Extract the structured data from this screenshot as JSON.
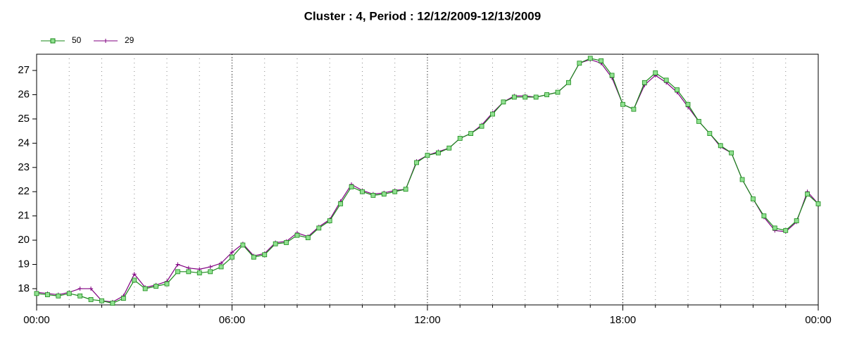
{
  "chart_data": {
    "type": "line",
    "title": "Cluster : 4, Period : 12/12/2009-12/13/2009",
    "x": [
      0,
      20,
      40,
      60,
      80,
      100,
      120,
      140,
      160,
      180,
      200,
      220,
      240,
      260,
      280,
      300,
      320,
      340,
      360,
      380,
      400,
      420,
      440,
      460,
      480,
      500,
      520,
      540,
      560,
      580,
      600,
      620,
      640,
      660,
      680,
      700,
      720,
      740,
      760,
      780,
      800,
      820,
      840,
      860,
      880,
      900,
      920,
      940,
      960,
      980,
      1000,
      1020,
      1040,
      1060,
      1080,
      1100,
      1120,
      1140,
      1160,
      1180,
      1200,
      1220,
      1240,
      1260,
      1280,
      1300,
      1320,
      1340,
      1360,
      1380,
      1400,
      1420,
      1440
    ],
    "series": [
      {
        "name": "50",
        "color": "#1a8a1a",
        "marker_fill": "#90e090",
        "marker": "square",
        "values": [
          17.8,
          17.75,
          17.7,
          17.8,
          17.7,
          17.55,
          17.5,
          17.4,
          17.6,
          18.35,
          18.0,
          18.1,
          18.2,
          18.7,
          18.7,
          18.65,
          18.7,
          18.9,
          19.3,
          19.8,
          19.3,
          19.4,
          19.85,
          19.9,
          20.2,
          20.1,
          20.5,
          20.8,
          21.5,
          22.2,
          22.0,
          21.85,
          21.9,
          22.0,
          22.1,
          23.2,
          23.5,
          23.6,
          23.8,
          24.2,
          24.4,
          24.7,
          25.2,
          25.7,
          25.9,
          25.9,
          25.9,
          26.0,
          26.1,
          26.5,
          27.3,
          27.5,
          27.4,
          26.8,
          25.6,
          25.4,
          26.5,
          26.9,
          26.6,
          26.2,
          25.6,
          24.9,
          24.4,
          23.9,
          23.6,
          22.5,
          21.7,
          21.0,
          20.5,
          20.4,
          20.8,
          21.9,
          21.5
        ]
      },
      {
        "name": "29",
        "color": "#800080",
        "marker": "plus",
        "values": [
          17.85,
          17.8,
          17.75,
          17.85,
          18.0,
          18.0,
          17.5,
          17.45,
          17.7,
          18.6,
          18.05,
          18.15,
          18.3,
          19.0,
          18.85,
          18.8,
          18.9,
          19.05,
          19.5,
          19.85,
          19.35,
          19.45,
          19.9,
          19.95,
          20.3,
          20.15,
          20.55,
          20.85,
          21.6,
          22.3,
          22.05,
          21.9,
          21.95,
          22.05,
          22.1,
          23.25,
          23.5,
          23.65,
          23.8,
          24.2,
          24.4,
          24.75,
          25.25,
          25.7,
          25.95,
          25.95,
          25.9,
          26.0,
          26.1,
          26.5,
          27.3,
          27.45,
          27.3,
          26.7,
          25.6,
          25.4,
          26.4,
          26.8,
          26.5,
          26.1,
          25.5,
          24.9,
          24.4,
          23.85,
          23.6,
          22.5,
          21.7,
          20.95,
          20.4,
          20.35,
          20.75,
          22.0,
          21.5
        ]
      }
    ],
    "xlim": [
      0,
      1440
    ],
    "xticks": [
      {
        "value": 0,
        "label": "00:00"
      },
      {
        "value": 360,
        "label": "06:00"
      },
      {
        "value": 720,
        "label": "12:00"
      },
      {
        "value": 1080,
        "label": "18:00"
      },
      {
        "value": 1440,
        "label": "00:00"
      }
    ],
    "ylim": [
      17.33,
      27.67
    ],
    "yticks": [
      18,
      19,
      20,
      21,
      22,
      23,
      24,
      25,
      26,
      27
    ],
    "grid": true
  }
}
